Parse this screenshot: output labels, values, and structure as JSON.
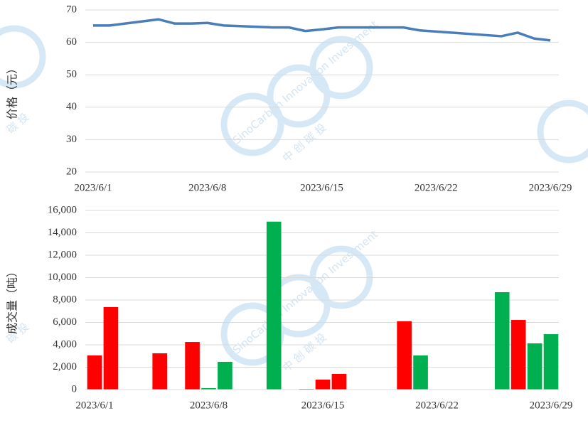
{
  "chart_data": [
    {
      "type": "line",
      "ylabel": "价格（元）",
      "color": "#4a7ebb",
      "x": [
        "2023/6/1",
        "2023/6/2",
        "2023/6/5",
        "2023/6/6",
        "2023/6/7",
        "2023/6/8",
        "2023/6/9",
        "2023/6/12",
        "2023/6/13",
        "2023/6/14",
        "2023/6/15",
        "2023/6/16",
        "2023/6/19",
        "2023/6/20",
        "2023/6/21",
        "2023/6/26",
        "2023/6/27",
        "2023/6/28",
        "2023/6/29"
      ],
      "values": [
        65.2,
        65.2,
        67.1,
        65.8,
        65.8,
        66,
        65.2,
        64.6,
        64.6,
        63.5,
        64,
        64.6,
        64.6,
        64.6,
        63.7,
        61.9,
        63,
        61.2,
        60.6
      ],
      "xlim": [
        "2023/6/1",
        "2023/6/29"
      ],
      "xticks": [
        "2023/6/1",
        "2023/6/8",
        "2023/6/15",
        "2023/6/22",
        "2023/6/29"
      ],
      "ylim": [
        20,
        70
      ],
      "yticks": [
        20,
        30,
        40,
        50,
        60,
        70
      ],
      "grid": true
    },
    {
      "type": "bar",
      "ylabel": "成交量（吨）",
      "x": [
        "2023/6/1",
        "2023/6/2",
        "2023/6/5",
        "2023/6/7",
        "2023/6/8",
        "2023/6/9",
        "2023/6/12",
        "2023/6/14",
        "2023/6/15",
        "2023/6/16",
        "2023/6/20",
        "2023/6/21",
        "2023/6/26",
        "2023/6/27",
        "2023/6/28",
        "2023/6/29"
      ],
      "values": [
        3050,
        7370,
        3240,
        4250,
        130,
        2480,
        15000,
        60,
        890,
        1400,
        6100,
        3050,
        8700,
        6220,
        4130,
        4950
      ],
      "colors": [
        "#ff0000",
        "#ff0000",
        "#ff0000",
        "#ff0000",
        "#00b050",
        "#00b050",
        "#00b050",
        "#00b050",
        "#ff0000",
        "#ff0000",
        "#ff0000",
        "#00b050",
        "#00b050",
        "#ff0000",
        "#00b050",
        "#00b050"
      ],
      "xlim": [
        "2023/6/1",
        "2023/6/29"
      ],
      "xticks": [
        "2023/6/1",
        "2023/6/8",
        "2023/6/15",
        "2023/6/22",
        "2023/6/29"
      ],
      "ylim": [
        0,
        16000
      ],
      "yticks": [
        0,
        {
          "value": 2000,
          "label": "2,000"
        },
        {
          "value": 4000,
          "label": "4,000"
        },
        {
          "value": 6000,
          "label": "6,000"
        },
        {
          "value": 8000,
          "label": "8,000"
        },
        {
          "value": 10000,
          "label": "10,000"
        },
        {
          "value": 12000,
          "label": "12,000"
        },
        {
          "value": 14000,
          "label": "14,000"
        },
        {
          "value": 16000,
          "label": "16,000"
        }
      ],
      "grid": true
    }
  ],
  "watermark": {
    "cn": "中 创 碳 投",
    "en": "SinoCarbon Innovation Investment",
    "short": "碳 投"
  }
}
